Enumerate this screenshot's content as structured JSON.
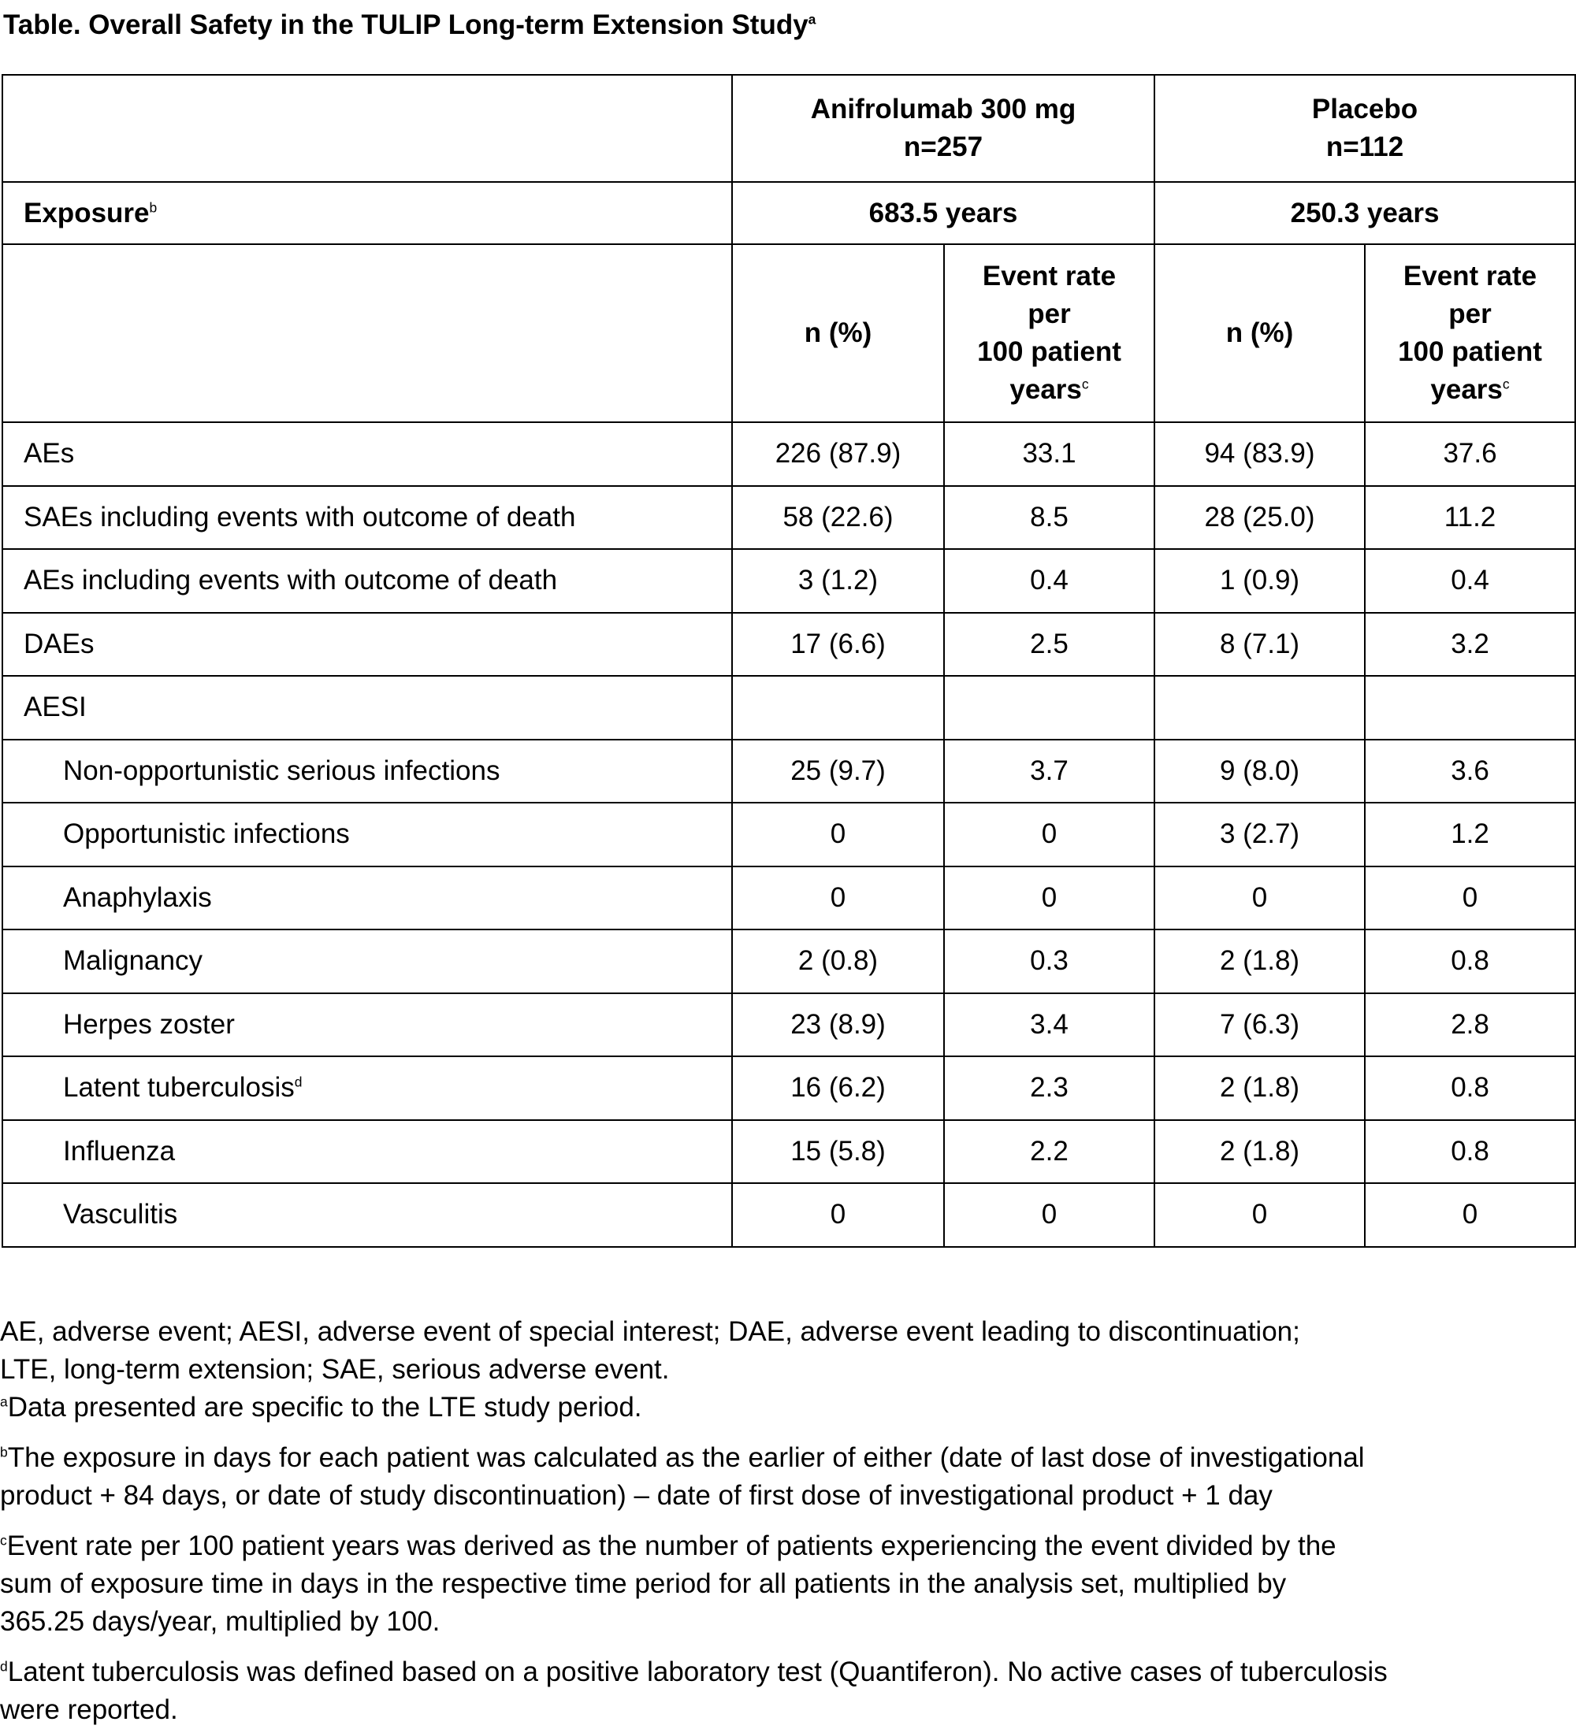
{
  "title": "Table. Overall Safety in the TULIP Long-term Extension Study",
  "title_sup": "a",
  "header": {
    "arm1_name": "Anifrolumab 300 mg",
    "arm1_n": "n=257",
    "arm2_name": "Placebo",
    "arm2_n": "n=112",
    "exposure_label": "Exposure",
    "exposure_sup": "b",
    "arm1_exposure": "683.5 years",
    "arm2_exposure": "250.3 years",
    "n_pct": "n (%)",
    "rate_l1": "Event rate",
    "rate_l2": "per",
    "rate_l3": "100 patient",
    "rate_l4": "years",
    "rate_sup": "c"
  },
  "rows": [
    {
      "label": "AEs",
      "a_n": "226 (87.9)",
      "a_r": "33.1",
      "p_n": "94 (83.9)",
      "p_r": "37.6"
    },
    {
      "label": "SAEs including events with outcome of death",
      "a_n": "58 (22.6)",
      "a_r": "8.5",
      "p_n": "28 (25.0)",
      "p_r": "11.2"
    },
    {
      "label": "AEs including events with outcome of death",
      "a_n": "3 (1.2)",
      "a_r": "0.4",
      "p_n": "1 (0.9)",
      "p_r": "0.4"
    },
    {
      "label": "DAEs",
      "a_n": "17 (6.6)",
      "a_r": "2.5",
      "p_n": "8 (7.1)",
      "p_r": "3.2"
    },
    {
      "label": "AESI",
      "a_n": "",
      "a_r": "",
      "p_n": "",
      "p_r": ""
    },
    {
      "label": "Non-opportunistic serious infections",
      "a_n": "25 (9.7)",
      "a_r": "3.7",
      "p_n": "9 (8.0)",
      "p_r": "3.6"
    },
    {
      "label": "Opportunistic infections",
      "a_n": "0",
      "a_r": "0",
      "p_n": "3 (2.7)",
      "p_r": "1.2"
    },
    {
      "label": "Anaphylaxis",
      "a_n": "0",
      "a_r": "0",
      "p_n": "0",
      "p_r": "0"
    },
    {
      "label": "Malignancy",
      "a_n": "2 (0.8)",
      "a_r": "0.3",
      "p_n": "2 (1.8)",
      "p_r": "0.8"
    },
    {
      "label": "Herpes zoster",
      "a_n": "23 (8.9)",
      "a_r": "3.4",
      "p_n": "7 (6.3)",
      "p_r": "2.8"
    },
    {
      "label": "Latent tuberculosis",
      "sup": "d",
      "a_n": "16 (6.2)",
      "a_r": "2.3",
      "p_n": "2 (1.8)",
      "p_r": "0.8"
    },
    {
      "label": "Influenza",
      "a_n": "15 (5.8)",
      "a_r": "2.2",
      "p_n": "2 (1.8)",
      "p_r": "0.8"
    },
    {
      "label": "Vasculitis",
      "a_n": "0",
      "a_r": "0",
      "p_n": "0",
      "p_r": "0"
    }
  ],
  "footnotes": {
    "abbrev_1": "AE, adverse event; AESI, adverse event of special interest; DAE, adverse event leading to discontinuation;",
    "abbrev_2": "LTE, long-term extension; SAE, serious adverse event.",
    "a_mark": "a",
    "a_text": "Data presented are specific to the LTE study period.",
    "b_mark": "b",
    "b_text_1": "The exposure in days for each patient was calculated as the earlier of either (date of last dose of investigational",
    "b_text_2": "product + 84 days, or date of study discontinuation) – date of first dose of investigational product + 1 day",
    "c_mark": "c",
    "c_text_1": "Event rate per 100 patient years was derived as the number of patients experiencing the event divided by the",
    "c_text_2": "sum of exposure time in days in the respective time period for all patients in the analysis set, multiplied by",
    "c_text_3": "365.25 days/year, multiplied by 100.",
    "d_mark": "d",
    "d_text_1": "Latent tuberculosis was defined based on a positive laboratory test (Quantiferon). No active cases of tuberculosis",
    "d_text_2": "were reported."
  }
}
